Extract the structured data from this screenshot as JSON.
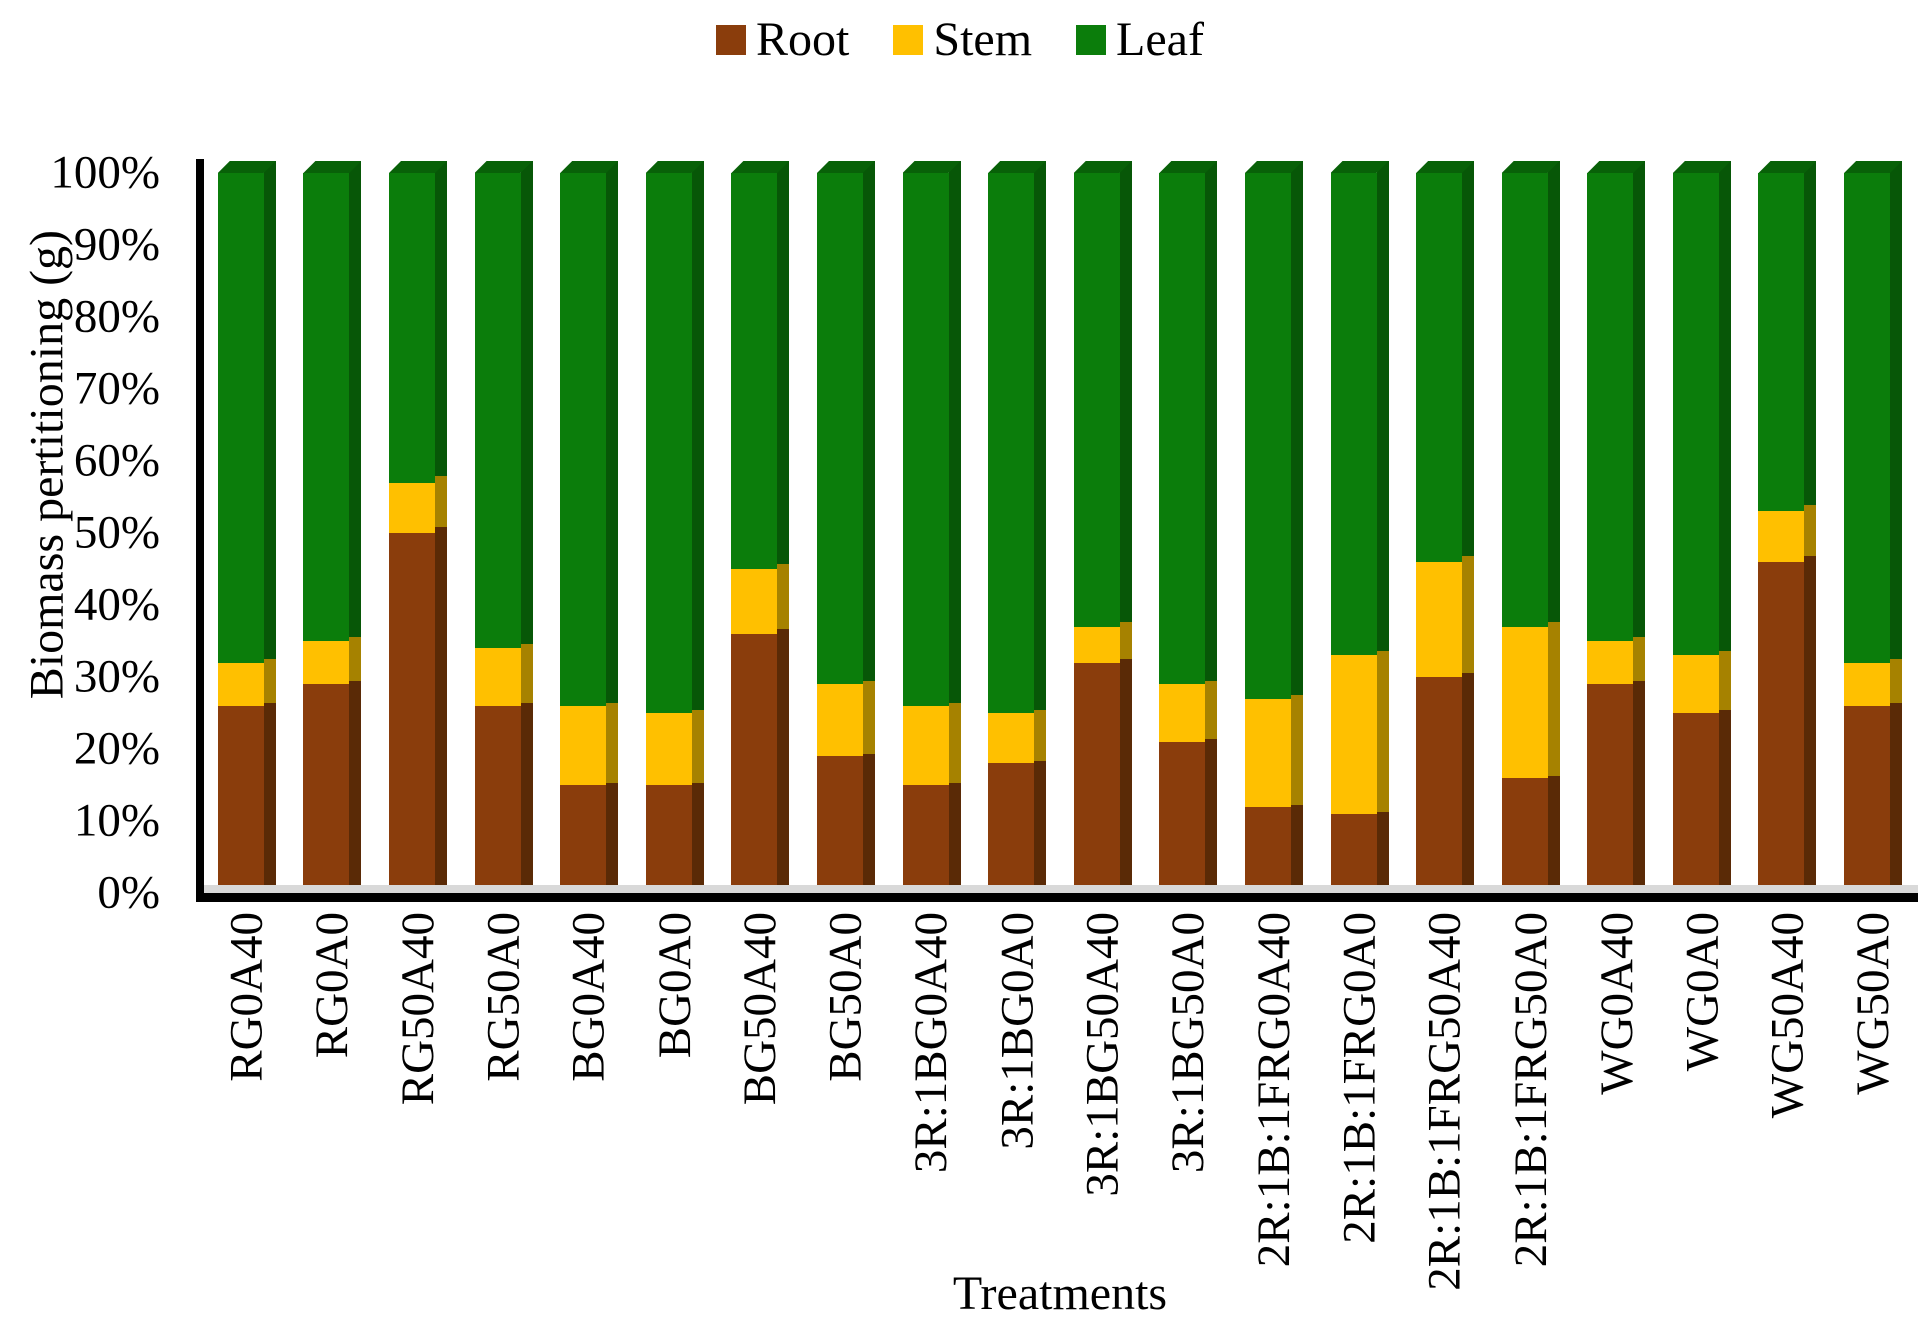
{
  "figure": {
    "background": "#FFFFFF",
    "axis_color": "#000000",
    "floor_color": "#D9D9D9"
  },
  "legend": {
    "position": "top-center",
    "items": [
      {
        "label": "Root",
        "color": "#8A3D0C"
      },
      {
        "label": "Stem",
        "color": "#FFC000"
      },
      {
        "label": "Leaf",
        "color": "#0B7D0B"
      }
    ]
  },
  "chart_data": {
    "type": "bar",
    "subtype": "stacked-100-percent-3d",
    "title": "",
    "xlabel": "Treatments",
    "ylabel": "Biomass pertitioning (g)",
    "units": "%",
    "ylim": [
      0,
      100
    ],
    "grid": false,
    "legend_position": "top-center",
    "y_ticks": [
      "100%",
      "90%",
      "80%",
      "70%",
      "60%",
      "50%",
      "40%",
      "30%",
      "20%",
      "10%",
      "0%"
    ],
    "categories": [
      "RG0A40",
      "RG0A0",
      "RG50A40",
      "RG50A0",
      "BG0A40",
      "BG0A0",
      "BG50A40",
      "BG50A0",
      "3R:1BG0A40",
      "3R:1BG0A0",
      "3R:1BG50A40",
      "3R:1BG50A0",
      "2R:1B:1FRG0A40",
      "2R:1B:1FRG0A0",
      "2R:1B:1FRG50A40",
      "2R:1B:1FRG50A0",
      "WG0A40",
      "WG0A0",
      "WG50A40",
      "WG50A0"
    ],
    "series": [
      {
        "name": "Root",
        "color": "#8A3D0C",
        "side_color": "#5A2A06",
        "values": [
          26,
          29,
          50,
          26,
          15,
          15,
          36,
          19,
          15,
          18,
          32,
          21,
          12,
          11,
          30,
          16,
          29,
          25,
          46,
          26
        ]
      },
      {
        "name": "Stem",
        "color": "#FFC000",
        "side_color": "#A68200",
        "values": [
          6,
          6,
          7,
          8,
          11,
          10,
          9,
          10,
          11,
          7,
          5,
          8,
          15,
          22,
          16,
          21,
          6,
          8,
          7,
          6
        ]
      },
      {
        "name": "Leaf",
        "color": "#0B7D0B",
        "side_color": "#075707",
        "cap_color": "#086108",
        "values": [
          68,
          65,
          43,
          66,
          74,
          75,
          55,
          71,
          74,
          75,
          63,
          71,
          73,
          67,
          54,
          63,
          65,
          67,
          47,
          68
        ]
      }
    ]
  }
}
